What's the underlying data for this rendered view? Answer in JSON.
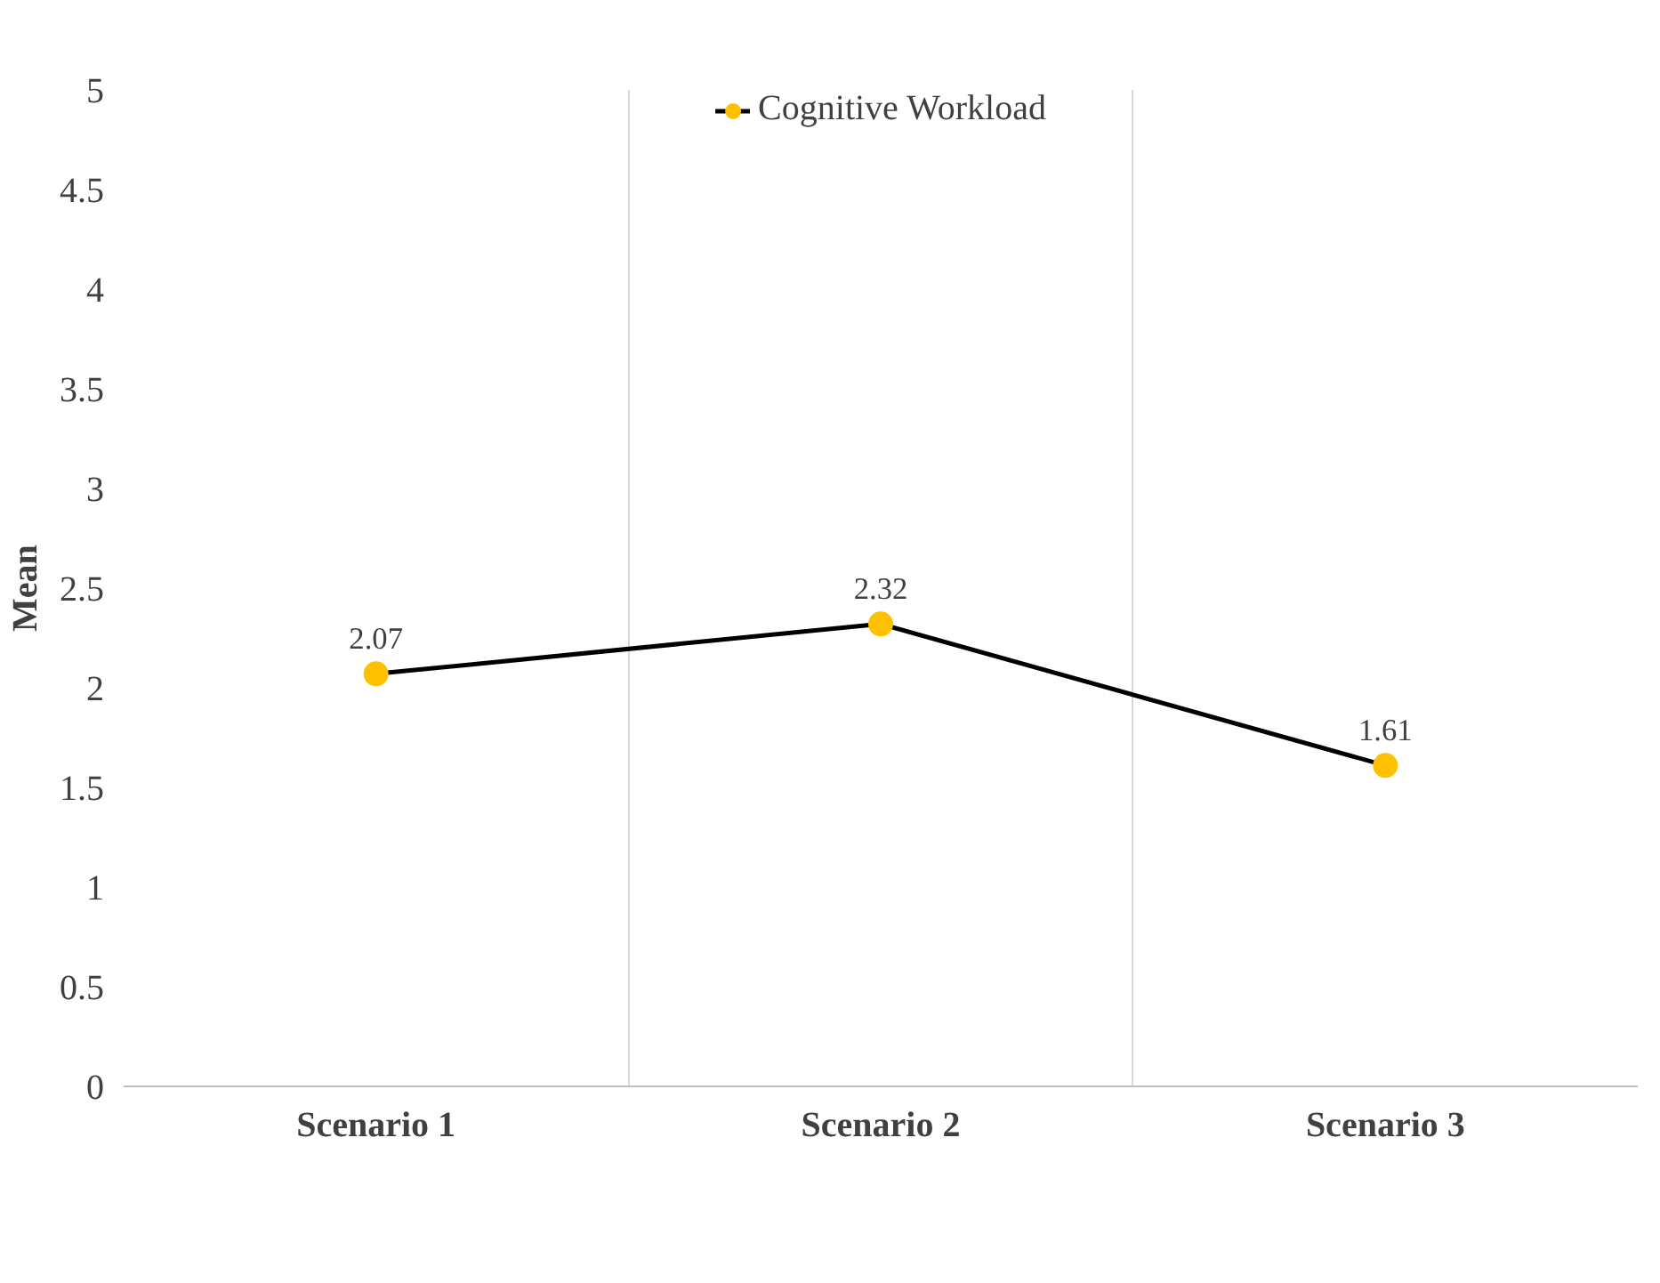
{
  "chart_data": {
    "type": "line",
    "ylabel": "Mean",
    "categories": [
      "Scenario 1",
      "Scenario 2",
      "Scenario 3"
    ],
    "series": [
      {
        "name": "Cognitive Workload",
        "color": "#ffc000",
        "values": [
          2.07,
          2.32,
          1.61
        ]
      }
    ],
    "ylim": [
      0,
      5
    ],
    "yticks": [
      0,
      0.5,
      1,
      1.5,
      2,
      2.5,
      3,
      3.5,
      4,
      4.5,
      5
    ],
    "grid": "x",
    "legend": "top",
    "marker": "circle",
    "line_style": "solid",
    "data_labels": true
  }
}
